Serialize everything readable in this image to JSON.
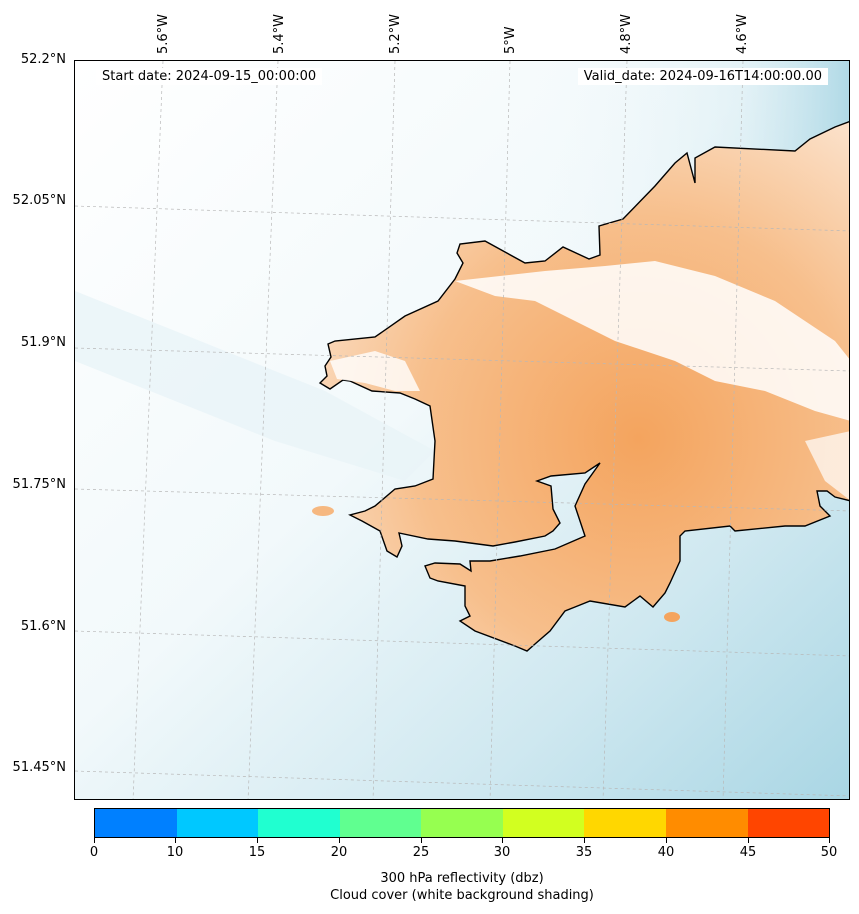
{
  "map": {
    "start_date": "Start date: 2024-09-15_00:00:00",
    "valid_date": "Valid_date: 2024-09-16T14:00:00.00",
    "lon_labels": [
      "5.6°W",
      "5.4°W",
      "5.2°W",
      "5°W",
      "4.8°W",
      "4.6°W"
    ],
    "lat_labels": [
      "52.2°N",
      "52.05°N",
      "51.9°N",
      "51.75°N",
      "51.6°N",
      "51.45°N"
    ],
    "land_color": "#f4a45e",
    "sea_color": "#add8e6",
    "coast_color": "#000000"
  },
  "colorbar": {
    "ticks": [
      "0",
      "10",
      "15",
      "20",
      "25",
      "30",
      "35",
      "40",
      "45",
      "50"
    ],
    "colors": [
      "#0080ff",
      "#00c8ff",
      "#20ffd0",
      "#60ff90",
      "#96ff50",
      "#d2ff20",
      "#ffd700",
      "#ff8c00",
      "#ff4500"
    ],
    "label_line1": "300 hPa reflectivity (dbz)",
    "label_line2": "Cloud cover (white background shading)"
  }
}
